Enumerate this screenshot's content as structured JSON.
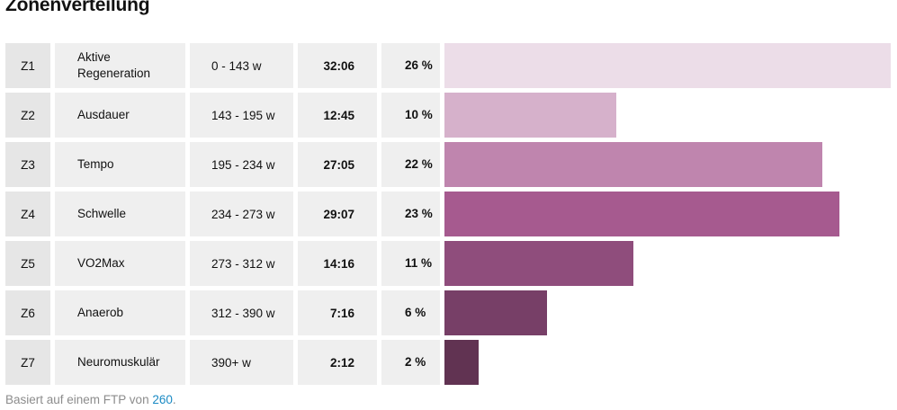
{
  "title": "Zonenverteilung",
  "zones": [
    {
      "zone": "Z1",
      "name": "Aktive Regeneration",
      "range": "0 - 143 w",
      "time": "32:06",
      "pct": "26 %",
      "value": 26,
      "color": "#ecdde8"
    },
    {
      "zone": "Z2",
      "name": "Ausdauer",
      "range": "143 - 195 w",
      "time": "12:45",
      "pct": "10 %",
      "value": 10,
      "color": "#d6b1cb"
    },
    {
      "zone": "Z3",
      "name": "Tempo",
      "range": "195 - 234 w",
      "time": "27:05",
      "pct": "22 %",
      "value": 22,
      "color": "#bf85ae"
    },
    {
      "zone": "Z4",
      "name": "Schwelle",
      "range": "234 - 273 w",
      "time": "29:07",
      "pct": "23 %",
      "value": 23,
      "color": "#a65a8f"
    },
    {
      "zone": "Z5",
      "name": "VO2Max",
      "range": "273 - 312 w",
      "time": "14:16",
      "pct": "11 %",
      "value": 11,
      "color": "#8f4d7c"
    },
    {
      "zone": "Z6",
      "name": "Anaerob",
      "range": "312 - 390 w",
      "time": "7:16",
      "pct": "6 %",
      "value": 6,
      "color": "#773f67"
    },
    {
      "zone": "Z7",
      "name": "Neuromuskulär",
      "range": "390+ w",
      "time": "2:12",
      "pct": "2 %",
      "value": 2,
      "color": "#613352"
    }
  ],
  "footer": {
    "text": "Basiert auf einem FTP von ",
    "ftp": "260",
    "end": "."
  }
}
